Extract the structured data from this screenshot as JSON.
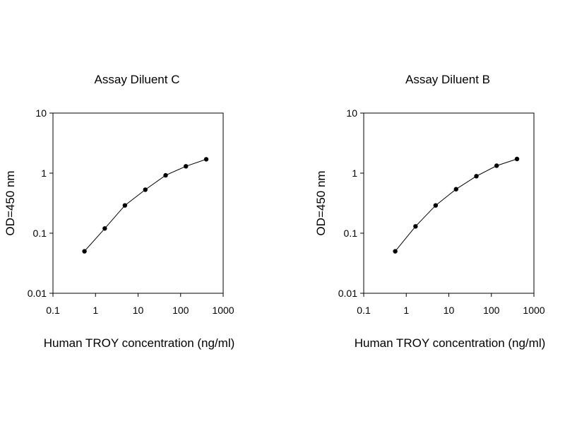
{
  "chart_data": [
    {
      "type": "line",
      "title": "Assay Diluent C",
      "xlabel": "Human TROY concentration (ng/ml)",
      "ylabel": "OD=450 nm",
      "x_scale": "log",
      "y_scale": "log",
      "xlim": [
        0.1,
        1000
      ],
      "ylim": [
        0.01,
        10
      ],
      "x_ticks": [
        "0.1",
        "1",
        "10",
        "100",
        "1000"
      ],
      "y_ticks": [
        "0.01",
        "0.1",
        "1",
        "10"
      ],
      "grid": false,
      "series": [
        {
          "x": [
            0.55,
            1.65,
            4.9,
            14.8,
            44.4,
            133,
            400
          ],
          "y": [
            0.05,
            0.12,
            0.29,
            0.53,
            0.92,
            1.3,
            1.7
          ]
        }
      ]
    },
    {
      "type": "line",
      "title": "Assay Diluent B",
      "xlabel": "Human TROY concentration (ng/ml)",
      "ylabel": "OD=450 nm",
      "x_scale": "log",
      "y_scale": "log",
      "xlim": [
        0.1,
        1000
      ],
      "ylim": [
        0.01,
        10
      ],
      "x_ticks": [
        "0.1",
        "1",
        "10",
        "100",
        "1000"
      ],
      "y_ticks": [
        "0.01",
        "0.1",
        "1",
        "10"
      ],
      "grid": false,
      "series": [
        {
          "x": [
            0.55,
            1.65,
            4.9,
            14.8,
            44.4,
            133,
            400
          ],
          "y": [
            0.05,
            0.13,
            0.29,
            0.54,
            0.89,
            1.33,
            1.72
          ]
        }
      ]
    }
  ]
}
